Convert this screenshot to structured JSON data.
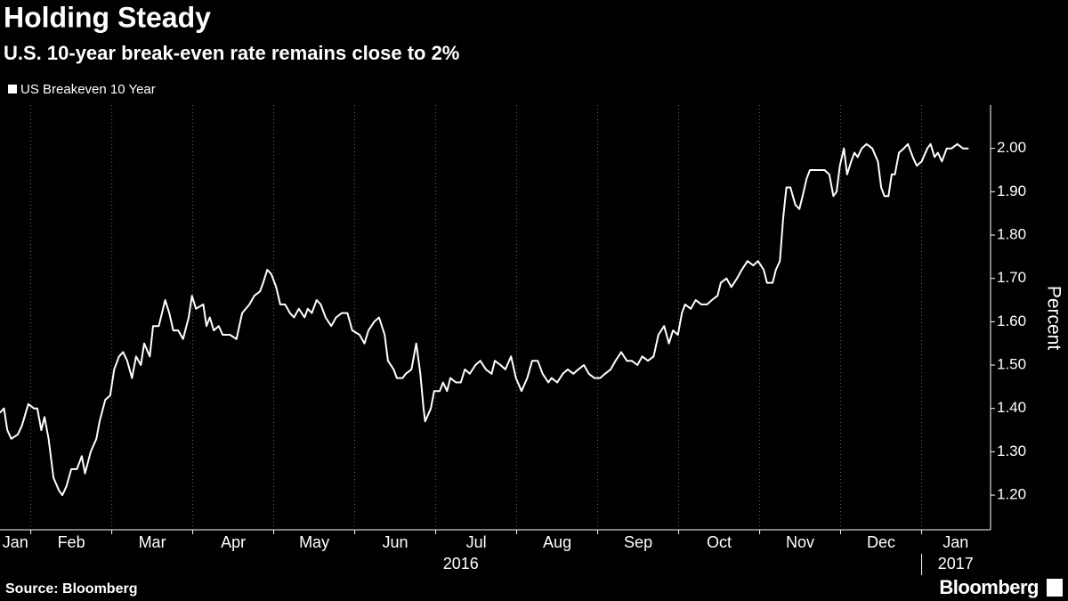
{
  "chart_data": {
    "type": "line",
    "title": "Holding Steady",
    "subtitle": "U.S. 10-year break-even rate remains close to 2%",
    "y_label": "Percent",
    "source": "Source: Bloomberg",
    "brand": "Bloomberg",
    "legend": "top-left",
    "grid": true,
    "xlim": [
      0.62,
      12.84
    ],
    "xticks": [
      {
        "value": 0,
        "label": "Jan"
      },
      {
        "value": 1,
        "label": "Feb"
      },
      {
        "value": 2,
        "label": "Mar"
      },
      {
        "value": 3,
        "label": "Apr"
      },
      {
        "value": 4,
        "label": "May"
      },
      {
        "value": 5,
        "label": "Jun"
      },
      {
        "value": 6,
        "label": "Jul"
      },
      {
        "value": 7,
        "label": "Aug"
      },
      {
        "value": 8,
        "label": "Sep"
      },
      {
        "value": 9,
        "label": "Oct"
      },
      {
        "value": 10,
        "label": "Nov"
      },
      {
        "value": 11,
        "label": "Dec"
      },
      {
        "value": 12,
        "label": "Jan"
      }
    ],
    "year_labels": [
      {
        "value": 0,
        "label": "2016"
      },
      {
        "value": 12,
        "label": "2017"
      }
    ],
    "ylim": [
      1.12,
      2.1
    ],
    "yticks": [
      {
        "value": 1.2,
        "label": "1.20"
      },
      {
        "value": 1.3,
        "label": "1.30"
      },
      {
        "value": 1.4,
        "label": "1.40"
      },
      {
        "value": 1.5,
        "label": "1.50"
      },
      {
        "value": 1.6,
        "label": "1.60"
      },
      {
        "value": 1.7,
        "label": "1.70"
      },
      {
        "value": 1.8,
        "label": "1.80"
      },
      {
        "value": 1.9,
        "label": "1.90"
      },
      {
        "value": 2.0,
        "label": "2.00"
      }
    ],
    "x": [
      0.62,
      0.67,
      0.71,
      0.76,
      0.84,
      0.89,
      0.97,
      1.04,
      1.08,
      1.13,
      1.17,
      1.22,
      1.28,
      1.35,
      1.39,
      1.44,
      1.5,
      1.57,
      1.63,
      1.67,
      1.74,
      1.81,
      1.85,
      1.92,
      1.98,
      2.03,
      2.09,
      2.14,
      2.19,
      2.25,
      2.3,
      2.36,
      2.4,
      2.47,
      2.51,
      2.58,
      2.62,
      2.66,
      2.71,
      2.76,
      2.82,
      2.88,
      2.95,
      2.99,
      3.04,
      3.13,
      3.17,
      3.21,
      3.26,
      3.32,
      3.37,
      3.46,
      3.54,
      3.61,
      3.7,
      3.76,
      3.83,
      3.87,
      3.92,
      3.97,
      4.03,
      4.08,
      4.14,
      4.2,
      4.25,
      4.31,
      4.38,
      4.42,
      4.47,
      4.53,
      4.58,
      4.64,
      4.71,
      4.77,
      4.84,
      4.91,
      4.97,
      5.06,
      5.12,
      5.17,
      5.24,
      5.3,
      5.37,
      5.41,
      5.48,
      5.52,
      5.59,
      5.63,
      5.7,
      5.76,
      5.81,
      5.85,
      5.87,
      5.94,
      5.98,
      6.05,
      6.09,
      6.14,
      6.18,
      6.25,
      6.31,
      6.36,
      6.42,
      6.49,
      6.55,
      6.62,
      6.69,
      6.73,
      6.8,
      6.86,
      6.93,
      6.99,
      7.06,
      7.13,
      7.19,
      7.26,
      7.32,
      7.39,
      7.43,
      7.5,
      7.57,
      7.63,
      7.7,
      7.76,
      7.83,
      7.89,
      7.96,
      8.03,
      8.09,
      8.16,
      8.22,
      8.29,
      8.36,
      8.42,
      8.49,
      8.55,
      8.62,
      8.69,
      8.75,
      8.82,
      8.88,
      8.93,
      8.99,
      9.04,
      9.08,
      9.15,
      9.21,
      9.28,
      9.35,
      9.41,
      9.48,
      9.52,
      9.59,
      9.65,
      9.72,
      9.78,
      9.85,
      9.92,
      9.98,
      10.05,
      10.09,
      10.16,
      10.2,
      10.25,
      10.29,
      10.33,
      10.38,
      10.44,
      10.49,
      10.53,
      10.58,
      10.62,
      10.71,
      10.8,
      10.86,
      10.91,
      10.95,
      10.99,
      11.04,
      11.08,
      11.13,
      11.17,
      11.21,
      11.26,
      11.32,
      11.39,
      11.46,
      11.5,
      11.54,
      11.59,
      11.63,
      11.67,
      11.72,
      11.78,
      11.83,
      11.89,
      11.94,
      12.0,
      12.07,
      12.11,
      12.16,
      12.2,
      12.25,
      12.31,
      12.37,
      12.44,
      12.51,
      12.58
    ],
    "series": [
      {
        "name": "US Breakeven 10 Year",
        "color": "#ffffff",
        "values": [
          1.39,
          1.4,
          1.35,
          1.33,
          1.34,
          1.36,
          1.41,
          1.4,
          1.4,
          1.35,
          1.38,
          1.33,
          1.24,
          1.21,
          1.2,
          1.22,
          1.26,
          1.26,
          1.29,
          1.25,
          1.3,
          1.33,
          1.37,
          1.42,
          1.43,
          1.49,
          1.52,
          1.53,
          1.51,
          1.47,
          1.52,
          1.5,
          1.55,
          1.52,
          1.59,
          1.59,
          1.62,
          1.65,
          1.62,
          1.58,
          1.58,
          1.56,
          1.61,
          1.66,
          1.63,
          1.64,
          1.59,
          1.61,
          1.58,
          1.59,
          1.57,
          1.57,
          1.56,
          1.62,
          1.64,
          1.66,
          1.67,
          1.69,
          1.72,
          1.71,
          1.68,
          1.64,
          1.64,
          1.62,
          1.61,
          1.63,
          1.61,
          1.63,
          1.62,
          1.65,
          1.64,
          1.61,
          1.59,
          1.61,
          1.62,
          1.62,
          1.58,
          1.57,
          1.55,
          1.58,
          1.6,
          1.61,
          1.57,
          1.51,
          1.49,
          1.47,
          1.47,
          1.48,
          1.49,
          1.55,
          1.48,
          1.4,
          1.37,
          1.4,
          1.44,
          1.44,
          1.46,
          1.44,
          1.47,
          1.46,
          1.46,
          1.49,
          1.48,
          1.5,
          1.51,
          1.49,
          1.48,
          1.51,
          1.5,
          1.49,
          1.52,
          1.47,
          1.44,
          1.47,
          1.51,
          1.51,
          1.48,
          1.46,
          1.47,
          1.46,
          1.48,
          1.49,
          1.48,
          1.49,
          1.5,
          1.48,
          1.47,
          1.47,
          1.48,
          1.49,
          1.51,
          1.53,
          1.51,
          1.51,
          1.5,
          1.52,
          1.51,
          1.52,
          1.57,
          1.59,
          1.55,
          1.58,
          1.57,
          1.62,
          1.64,
          1.63,
          1.65,
          1.64,
          1.64,
          1.65,
          1.66,
          1.69,
          1.7,
          1.68,
          1.7,
          1.72,
          1.74,
          1.73,
          1.74,
          1.72,
          1.69,
          1.69,
          1.72,
          1.74,
          1.84,
          1.91,
          1.91,
          1.87,
          1.86,
          1.89,
          1.93,
          1.95,
          1.95,
          1.95,
          1.94,
          1.89,
          1.9,
          1.96,
          2.0,
          1.94,
          1.97,
          1.99,
          1.98,
          2.0,
          2.01,
          2.0,
          1.97,
          1.91,
          1.89,
          1.89,
          1.94,
          1.94,
          1.99,
          2.0,
          2.01,
          1.98,
          1.96,
          1.97,
          2.0,
          2.01,
          1.98,
          1.99,
          1.97,
          2.0,
          2.0,
          2.01,
          2.0,
          2.0
        ]
      }
    ]
  }
}
